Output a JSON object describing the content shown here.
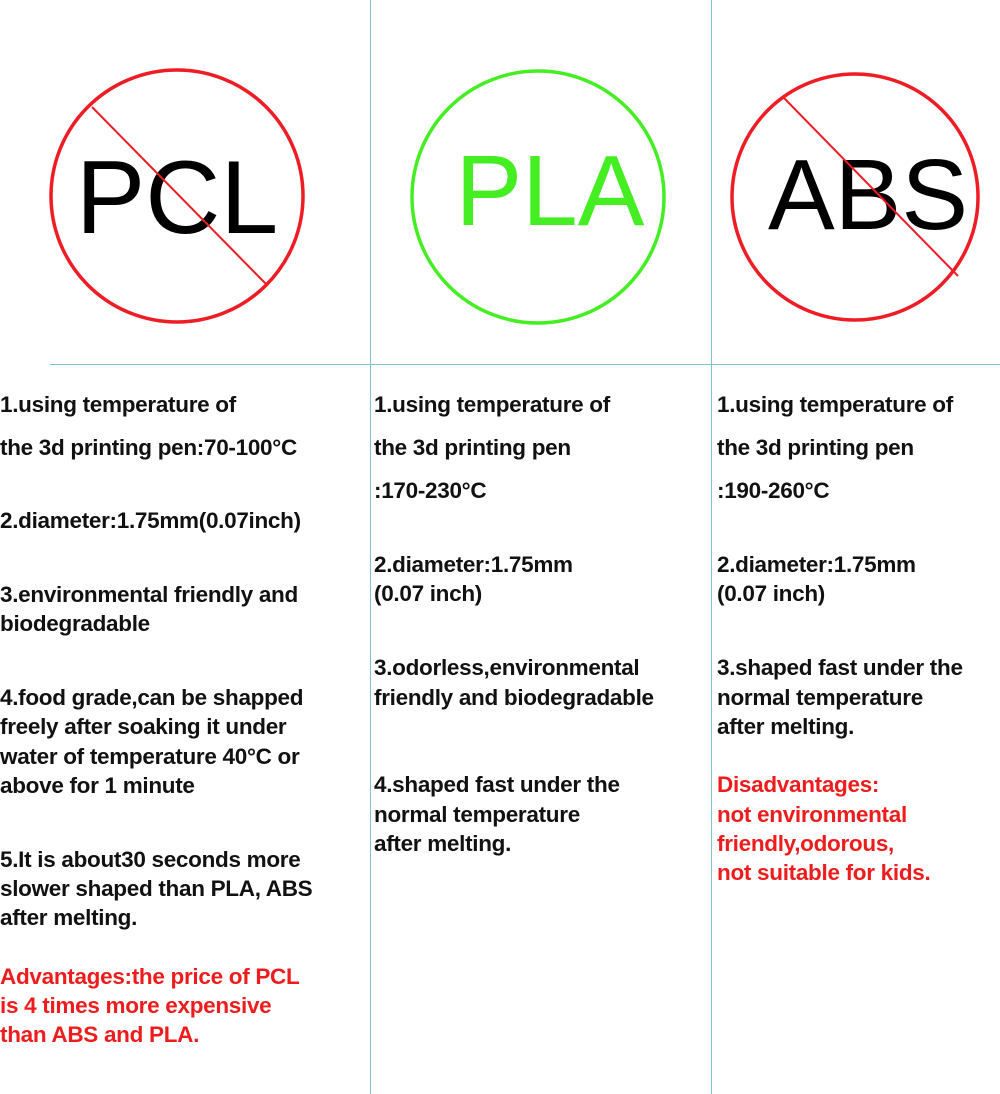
{
  "colors": {
    "pcl": "#ee1c24",
    "pla": "#44ee22",
    "abs": "#ee1c24",
    "divider": "#7cc3cf",
    "warning_text": "#ee1c1c"
  },
  "materials": [
    {
      "name": "PCL",
      "status": "prohibited-sign",
      "lines": [
        {
          "text": "1.using temperature of"
        },
        {
          "text": "the 3d printing pen:70-100°C"
        },
        {
          "text": "2.diameter:1.75mm(0.07inch)"
        },
        {
          "text": "3.environmental friendly and"
        },
        {
          "text": "biodegradable"
        },
        {
          "text": "4.food grade,can be shapped"
        },
        {
          "text": "freely after soaking it under"
        },
        {
          "text": "water of temperature 40°C or"
        },
        {
          "text": "above for 1 minute"
        },
        {
          "text": "5.It is about30 seconds more"
        },
        {
          "text": "slower shaped than PLA, ABS"
        },
        {
          "text": "after melting."
        },
        {
          "text": "Advantages:the price of PCL",
          "red": true
        },
        {
          "text": "is 4 times more expensive",
          "red": true
        },
        {
          "text": "than ABS and PLA.",
          "red": true
        }
      ]
    },
    {
      "name": "PLA",
      "status": "approved-circle",
      "lines": [
        {
          "text": "1.using temperature of"
        },
        {
          "text": "the 3d printing pen"
        },
        {
          "text": ":170-230°C"
        },
        {
          "text": "2.diameter:1.75mm"
        },
        {
          "text": "(0.07 inch)"
        },
        {
          "text": "3.odorless,environmental"
        },
        {
          "text": "friendly and biodegradable"
        },
        {
          "text": "4.shaped fast under the"
        },
        {
          "text": "normal temperature"
        },
        {
          "text": "after melting."
        }
      ]
    },
    {
      "name": "ABS",
      "status": "prohibited-sign",
      "lines": [
        {
          "text": "1.using temperature of"
        },
        {
          "text": "the 3d printing pen"
        },
        {
          "text": ":190-260°C"
        },
        {
          "text": "2.diameter:1.75mm"
        },
        {
          "text": "(0.07 inch)"
        },
        {
          "text": "3.shaped fast under the"
        },
        {
          "text": "normal temperature"
        },
        {
          "text": "after melting."
        },
        {
          "text": "Disadvantages:",
          "red": true
        },
        {
          "text": "not environmental",
          "red": true
        },
        {
          "text": "friendly,odorous,",
          "red": true
        },
        {
          "text": "not suitable for kids.",
          "red": true
        }
      ]
    }
  ]
}
